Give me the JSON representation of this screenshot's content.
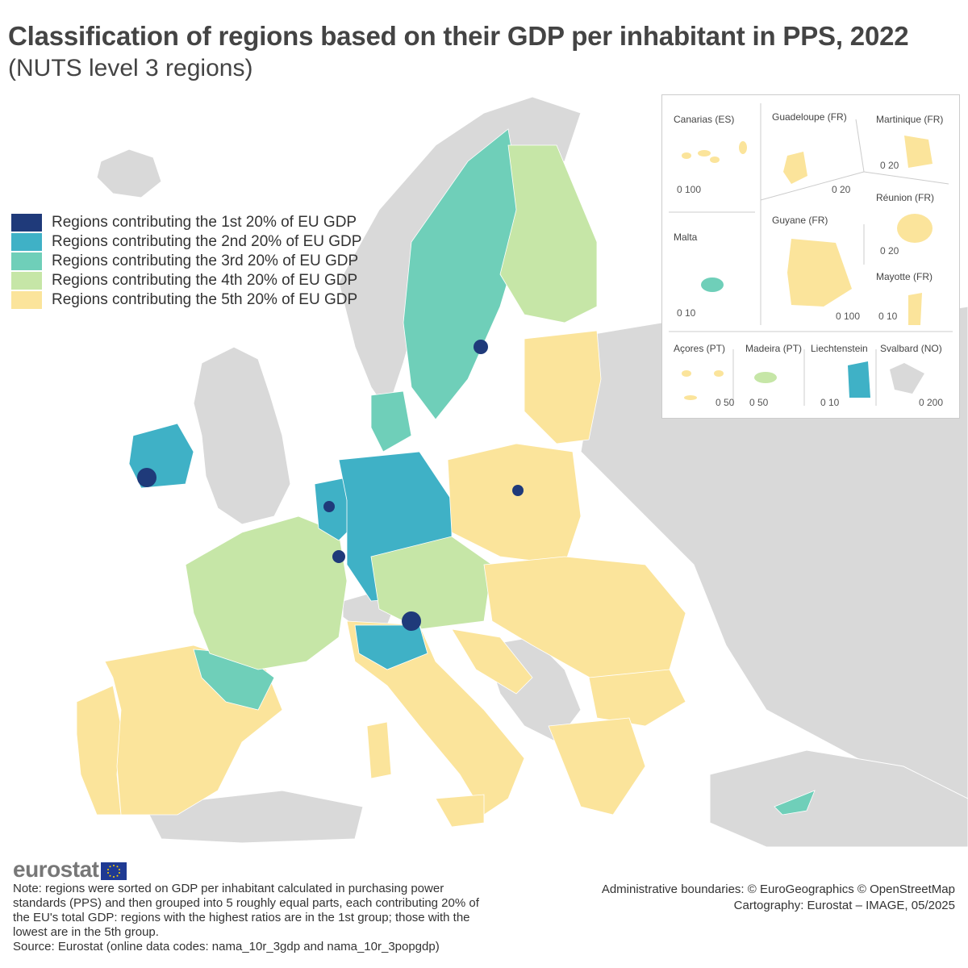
{
  "title": "Classification of regions based on their GDP per inhabitant in PPS, 2022",
  "subtitle": "(NUTS level 3 regions)",
  "legend": [
    {
      "label": "Regions contributing the 1st 20% of EU GDP",
      "color": "#1f3a7a"
    },
    {
      "label": "Regions contributing the 2nd 20% of EU GDP",
      "color": "#3fb1c6"
    },
    {
      "label": "Regions contributing the 3rd 20% of EU GDP",
      "color": "#6fcfb9"
    },
    {
      "label": "Regions contributing the 4th 20% of EU GDP",
      "color": "#c6e6a7"
    },
    {
      "label": "Regions contributing the 5th 20% of EU GDP",
      "color": "#fbe49b"
    }
  ],
  "insets": {
    "canarias": {
      "label": "Canarias (ES)",
      "scale": "0  100"
    },
    "guadeloupe": {
      "label": "Guadeloupe (FR)",
      "scale": "0  20"
    },
    "martinique": {
      "label": "Martinique (FR)",
      "scale": "0  20"
    },
    "reunion": {
      "label": "Réunion (FR)",
      "scale": "0  20"
    },
    "malta": {
      "label": "Malta",
      "scale": "0  10"
    },
    "guyane": {
      "label": "Guyane (FR)",
      "scale": "0  100"
    },
    "mayotte": {
      "label": "Mayotte (FR)",
      "scale": "0 10"
    },
    "acores": {
      "label": "Açores (PT)",
      "scale": "0  50"
    },
    "madeira": {
      "label": "Madeira (PT)",
      "scale": "0   50"
    },
    "liechtenstein": {
      "label": "Liechtenstein",
      "scale": "0  10"
    },
    "svalbard": {
      "label": "Svalbard (NO)",
      "scale": "0   200"
    }
  },
  "brand": "eurostat",
  "note": "Note: regions were sorted on GDP per inhabitant calculated in purchasing power standards (PPS) and then grouped into 5 roughly equal parts, each contributing 20% of the EU's total GDP: regions with the highest ratios are in the 1st group; those with the lowest are in the 5th group.",
  "source": "Source: Eurostat (online data codes: nama_10r_3gdp and nama_10r_3popgdp)",
  "credits": {
    "boundaries": "Administrative boundaries: © EuroGeographics © OpenStreetMap",
    "cartography": "Cartography: Eurostat – IMAGE, 05/2025"
  }
}
